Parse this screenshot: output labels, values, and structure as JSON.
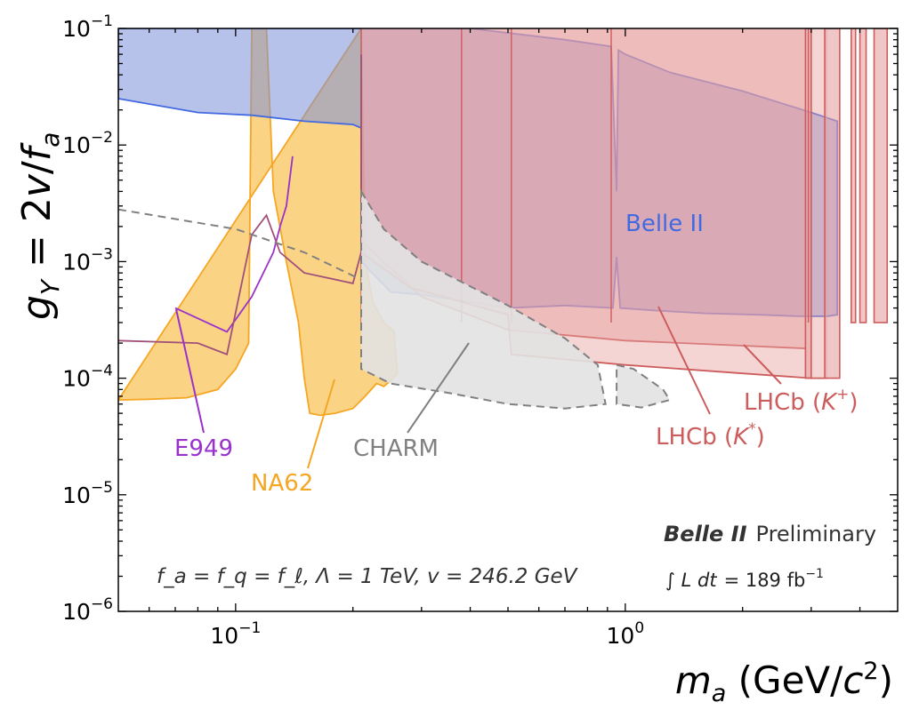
{
  "chart_data": {
    "type": "area",
    "title": "",
    "xlabel": "m_a (GeV/c²)",
    "ylabel": "g_Y = 2v/f_a",
    "xscale": "log",
    "yscale": "log",
    "xlim": [
      0.05,
      5.0
    ],
    "ylim": [
      1e-06,
      0.1
    ],
    "x_ticks": [
      {
        "value": 0.1,
        "mantissa": "10",
        "exp": "−1"
      },
      {
        "value": 1.0,
        "mantissa": "10",
        "exp": "0"
      }
    ],
    "y_ticks": [
      {
        "value": 1e-06,
        "mantissa": "10",
        "exp": "−6"
      },
      {
        "value": 1e-05,
        "mantissa": "10",
        "exp": "−5"
      },
      {
        "value": 0.0001,
        "mantissa": "10",
        "exp": "−4"
      },
      {
        "value": 0.001,
        "mantissa": "10",
        "exp": "−3"
      },
      {
        "value": 0.01,
        "mantissa": "10",
        "exp": "−2"
      },
      {
        "value": 0.1,
        "mantissa": "10",
        "exp": "−1"
      }
    ],
    "colors": {
      "belle": "#4169e1",
      "belle_fill": "#7b8fd8",
      "lhcb": "#cd5c5c",
      "lhcb_fill": "#e8a0a0",
      "na62": "#f5a623",
      "na62_fill": "#f9c45c",
      "e949": "#9932cc",
      "charm": "#808080",
      "charm_fill": "#e2e2e2",
      "purple_line": "#a0507a"
    },
    "series": [
      {
        "name": "NA62",
        "points": [
          [
            0.05,
            6.5e-05
          ],
          [
            0.06,
            6.6e-05
          ],
          [
            0.075,
            6.8e-05
          ],
          [
            0.09,
            8e-05
          ],
          [
            0.1,
            0.00012
          ],
          [
            0.108,
            0.0002
          ],
          [
            0.11,
            0.1
          ],
          [
            0.12,
            0.1
          ],
          [
            0.125,
            0.004
          ],
          [
            0.135,
            0.001
          ],
          [
            0.145,
            0.0003
          ],
          [
            0.15,
            0.0001
          ],
          [
            0.155,
            5e-05
          ],
          [
            0.165,
            4.8e-05
          ],
          [
            0.18,
            5e-05
          ],
          [
            0.2,
            5.5e-05
          ],
          [
            0.215,
            7e-05
          ],
          [
            0.23,
            9e-05
          ],
          [
            0.24,
            8.5e-05
          ],
          [
            0.25,
            9.5e-05
          ],
          [
            0.26,
            0.00011
          ],
          [
            0.255,
            0.00025
          ],
          [
            0.24,
            0.0003
          ],
          [
            0.225,
            0.00045
          ],
          [
            0.215,
            0.001
          ],
          [
            0.21,
            0.1
          ]
        ]
      },
      {
        "name": "E949",
        "points": [
          [
            0.07,
            0.0004
          ],
          [
            0.095,
            0.00025
          ],
          [
            0.11,
            0.0005
          ],
          [
            0.125,
            0.0012
          ],
          [
            0.13,
            0.002
          ],
          [
            0.135,
            0.003
          ],
          [
            0.14,
            0.008
          ]
        ]
      },
      {
        "name": "CHARM",
        "points": [
          [
            0.21,
            0.004
          ],
          [
            0.24,
            0.0019
          ],
          [
            0.3,
            0.001
          ],
          [
            0.5,
            0.00042
          ],
          [
            0.7,
            0.00022
          ],
          [
            0.85,
            0.00013
          ],
          [
            0.89,
            6e-05
          ],
          [
            0.7,
            5.5e-05
          ],
          [
            0.5,
            6e-05
          ],
          [
            0.35,
            7.5e-05
          ],
          [
            0.25,
            9e-05
          ],
          [
            0.21,
            0.00012
          ],
          [
            0.21,
            0.004
          ]
        ]
      },
      {
        "name": "Belle II",
        "points": [
          [
            0.05,
            0.025
          ],
          [
            0.08,
            0.019
          ],
          [
            0.11,
            0.018
          ],
          [
            0.15,
            0.016
          ],
          [
            0.2,
            0.015
          ],
          [
            0.21,
            0.014
          ],
          [
            0.21,
            0.001
          ],
          [
            0.25,
            0.00055
          ],
          [
            0.3,
            0.00052
          ],
          [
            0.4,
            0.00045
          ],
          [
            0.5,
            0.0004
          ],
          [
            0.7,
            0.00042
          ],
          [
            0.93,
            0.0004
          ],
          [
            0.95,
            0.0011
          ],
          [
            0.97,
            0.0004
          ],
          [
            1.2,
            0.00038
          ],
          [
            1.6,
            0.00036
          ],
          [
            2.2,
            0.00035
          ],
          [
            2.8,
            0.00034
          ],
          [
            3.3,
            0.00034
          ],
          [
            3.5,
            0.00035
          ],
          [
            3.5,
            0.016
          ],
          [
            3.0,
            0.019
          ],
          [
            2.0,
            0.029
          ],
          [
            1.3,
            0.042
          ],
          [
            1.0,
            0.06
          ],
          [
            0.96,
            0.065
          ],
          [
            0.95,
            0.004
          ],
          [
            0.92,
            0.07
          ],
          [
            0.7,
            0.08
          ],
          [
            0.4,
            0.1
          ],
          [
            0.22,
            0.1
          ],
          [
            0.15,
            0.1
          ],
          [
            0.05,
            0.1
          ]
        ]
      },
      {
        "name": "LHCb (K*)",
        "points": [
          [
            0.21,
            0.0015
          ],
          [
            0.3,
            0.0005
          ],
          [
            0.5,
            0.00026
          ],
          [
            1.0,
            0.00021
          ],
          [
            2.0,
            0.00019
          ],
          [
            2.9,
            0.00018
          ]
        ]
      },
      {
        "name": "LHCb (K+)",
        "points": [
          [
            0.21,
            0.0012
          ],
          [
            0.28,
            0.0006
          ],
          [
            0.5,
            0.00035
          ],
          [
            0.51,
            0.00016
          ],
          [
            1.0,
            0.00013
          ],
          [
            2.0,
            0.00011
          ],
          [
            3.0,
            0.0001
          ],
          [
            3.3,
            0.0001
          ]
        ]
      }
    ],
    "labels": {
      "belle": "Belle II",
      "lhcb_kplus_text": "LHCb (",
      "lhcb_kplus_sym": "K",
      "lhcb_kplus_sup": "+",
      "lhcb_kstar_text": "LHCb (",
      "lhcb_kstar_sym": "K",
      "lhcb_kstar_sup": "*",
      "close_paren": ")",
      "e949": "E949",
      "na62": "NA62",
      "charm": "CHARM"
    },
    "annotations": {
      "params": "f_a = f_q = f_ℓ, Λ = 1 TeV, v = 246.2 GeV",
      "exp_name": "Belle II",
      "status": "Preliminary",
      "lumi_prefix": "∫ L dt",
      "lumi_value": "= 189 fb",
      "lumi_exp": "−1"
    }
  }
}
